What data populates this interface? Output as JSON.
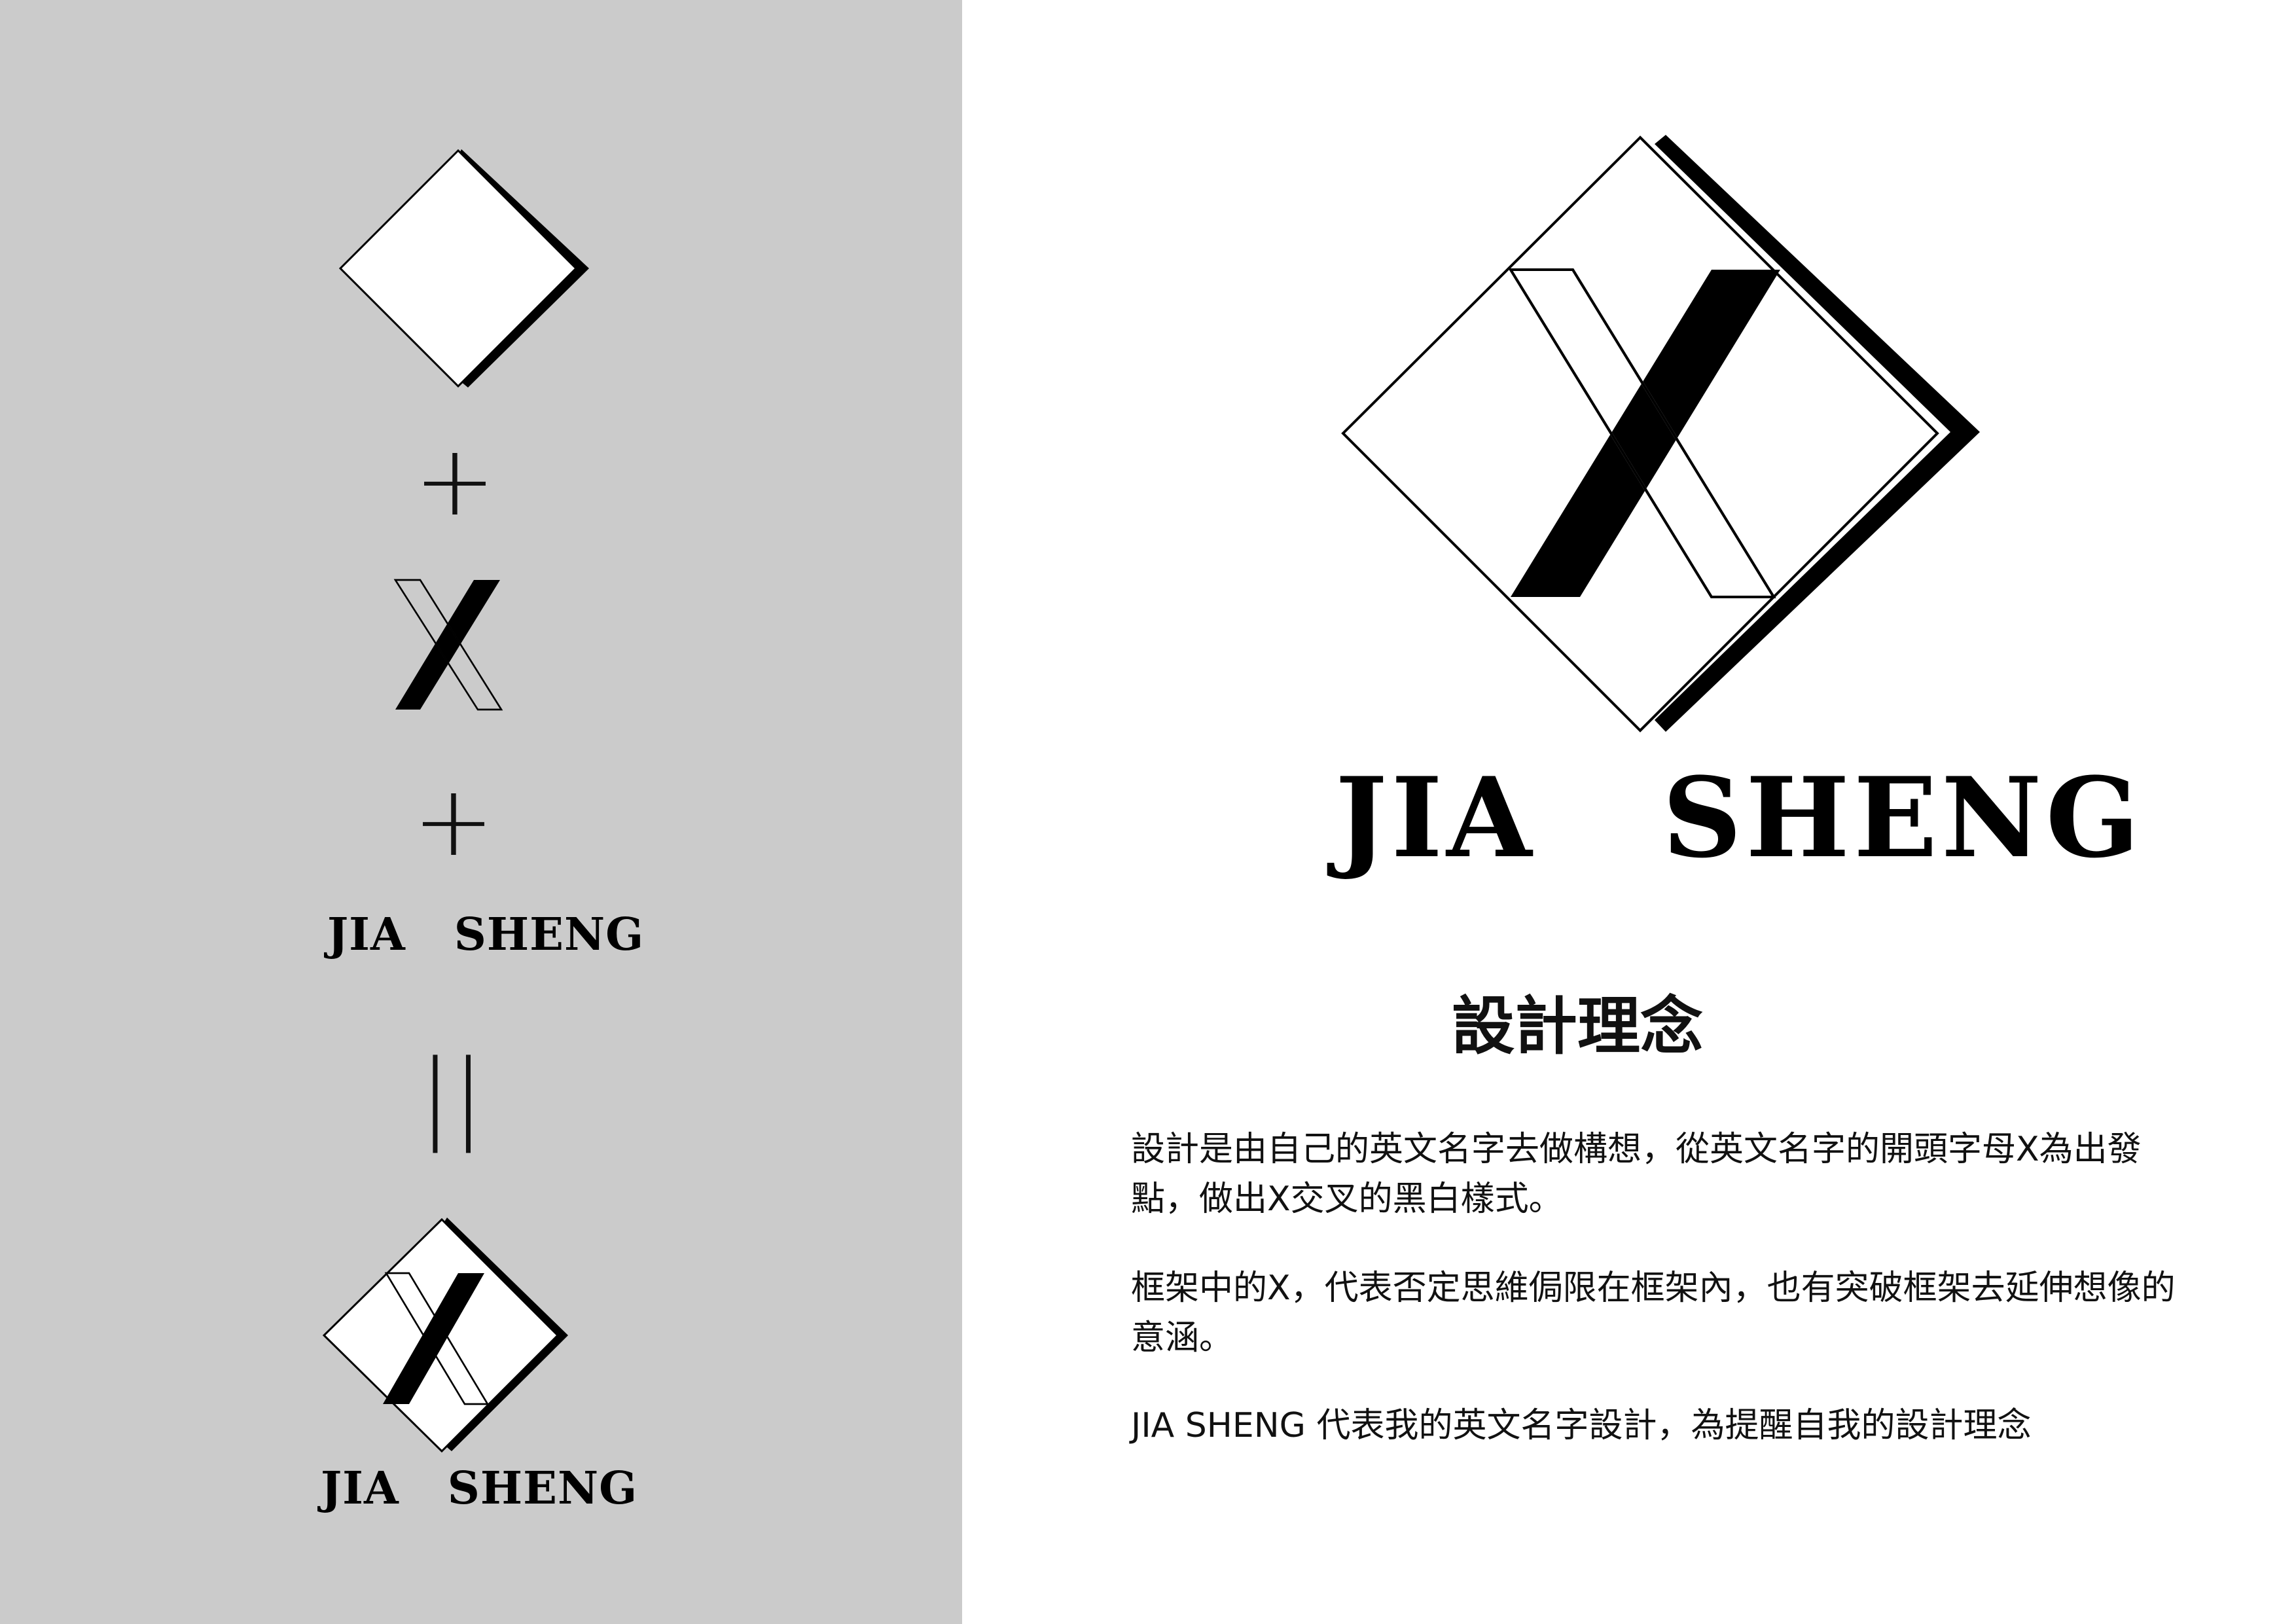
{
  "palette": {
    "panel_bg": "#cbcbcb",
    "page_bg": "#ffffff",
    "ink": "#000000"
  },
  "left_panel": {
    "plus_1": "+",
    "plus_2": "+",
    "wordmark": "JIA   SHENG",
    "equals": "||",
    "result_wordmark": "JIA   SHENG",
    "icons": [
      "diamond-frame-icon",
      "letter-x-icon",
      "jia-sheng-logo-icon"
    ]
  },
  "main_logo": {
    "icon": "jia-sheng-logo-icon",
    "wordmark": "JIA   SHENG"
  },
  "concept": {
    "title": "設計理念",
    "paragraphs": [
      "設計是由自己的英文名字去做構想，從英文名字的開頭字母X為出發點，做出X交叉的黑白樣式。",
      "框架中的X，代表否定思維侷限在框架內，也有突破框架去延伸想像的意涵。",
      "JIA SHENG 代表我的英文名字設計，為提醒自我的設計理念"
    ]
  }
}
